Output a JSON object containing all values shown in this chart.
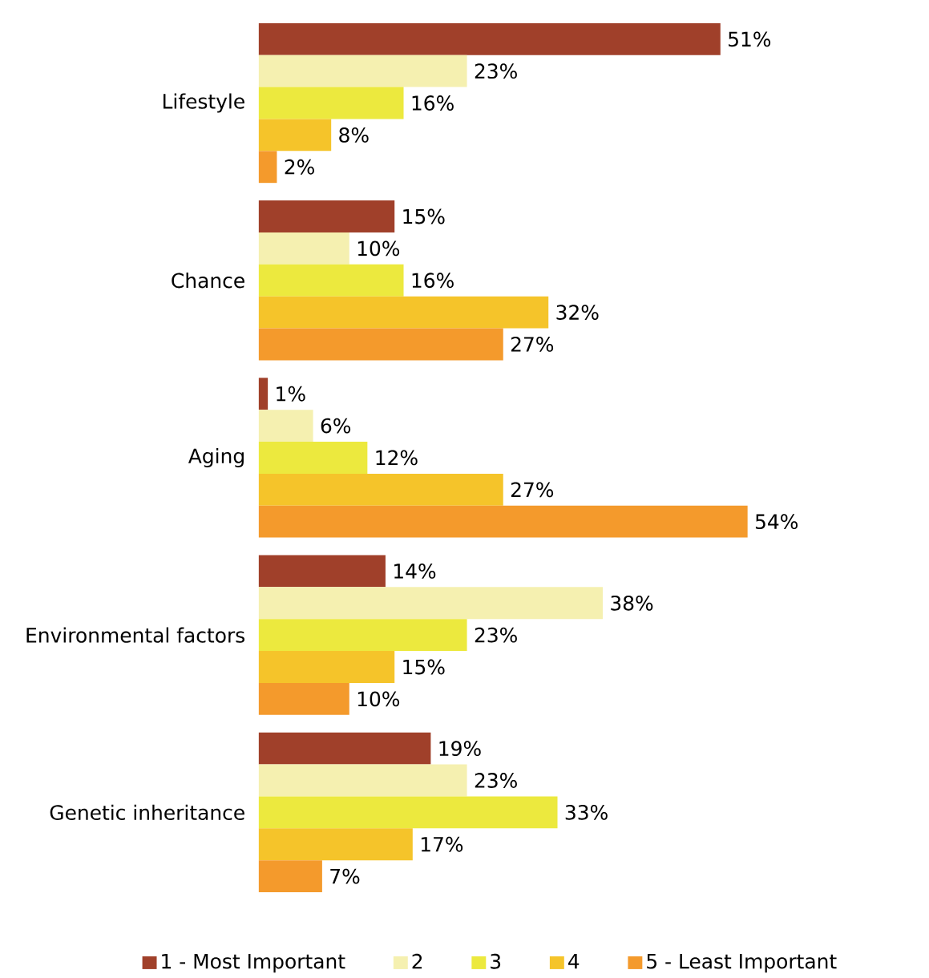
{
  "chart_data": {
    "type": "bar",
    "orientation": "horizontal",
    "legend": "bottom",
    "categories": [
      "Lifestyle",
      "Chance",
      "Aging",
      "Environmental factors",
      "Genetic inheritance"
    ],
    "series": [
      {
        "name": "1 - Most Important",
        "color": "#a0402a",
        "values": [
          51,
          15,
          1,
          14,
          19
        ],
        "value_labels": [
          "51%",
          "15%",
          "1%",
          "14%",
          "19%"
        ]
      },
      {
        "name": "2",
        "color": "#f5f0b0",
        "values": [
          23,
          10,
          6,
          38,
          23
        ],
        "value_labels": [
          "23%",
          "10%",
          "6%",
          "38%",
          "23%"
        ]
      },
      {
        "name": "3",
        "color": "#ece93e",
        "values": [
          16,
          16,
          12,
          23,
          33
        ],
        "value_labels": [
          "16%",
          "16%",
          "12%",
          "23%",
          "33%"
        ]
      },
      {
        "name": "4",
        "color": "#f5c42a",
        "values": [
          8,
          32,
          27,
          15,
          17
        ],
        "value_labels": [
          "8%",
          "32%",
          "27%",
          "15%",
          "17%"
        ]
      },
      {
        "name": "5 - Least Important",
        "color": "#f49a2c",
        "values": [
          2,
          27,
          54,
          10,
          7
        ],
        "value_labels": [
          "2%",
          "27%",
          "54%",
          "10%",
          "7%"
        ]
      }
    ]
  }
}
